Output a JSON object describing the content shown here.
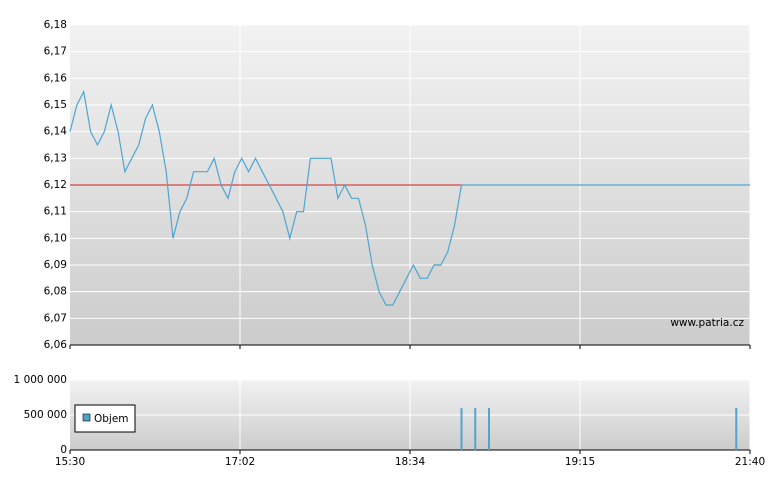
{
  "chart_data": [
    {
      "type": "line",
      "source": "www.patria.cz",
      "color": "#4da6cf",
      "reference_line": 6.12,
      "reference_color": "#d02020",
      "grid": true,
      "values": [
        6.14,
        6.15,
        6.155,
        6.14,
        6.135,
        6.14,
        6.15,
        6.14,
        6.125,
        6.13,
        6.135,
        6.145,
        6.15,
        6.14,
        6.125,
        6.1,
        6.11,
        6.115,
        6.125,
        6.125,
        6.125,
        6.13,
        6.12,
        6.115,
        6.125,
        6.13,
        6.125,
        6.13,
        6.125,
        6.12,
        6.115,
        6.11,
        6.1,
        6.11,
        6.11,
        6.13,
        6.13,
        6.13,
        6.13,
        6.115,
        6.12,
        6.115,
        6.115,
        6.105,
        6.09,
        6.08,
        6.075,
        6.075,
        6.08,
        6.085,
        6.09,
        6.085,
        6.085,
        6.09,
        6.09,
        6.095,
        6.105,
        6.12,
        6.12,
        6.12,
        6.12,
        6.12,
        6.12,
        6.12,
        6.12,
        6.12,
        6.12,
        6.12,
        6.12,
        6.12,
        6.12,
        6.12,
        6.12,
        6.12,
        6.12,
        6.12,
        6.12,
        6.12,
        6.12,
        6.12,
        6.12,
        6.12,
        6.12,
        6.12,
        6.12,
        6.12,
        6.12,
        6.12,
        6.12,
        6.12,
        6.12,
        6.12,
        6.12,
        6.12,
        6.12,
        6.12,
        6.12,
        6.12,
        6.12,
        6.12
      ],
      "ylim": [
        6.06,
        6.18
      ],
      "yticks": [
        {
          "value": 6.06,
          "label": "6,06"
        },
        {
          "value": 6.07,
          "label": "6,07"
        },
        {
          "value": 6.08,
          "label": "6,08"
        },
        {
          "value": 6.09,
          "label": "6,09"
        },
        {
          "value": 6.1,
          "label": "6,10"
        },
        {
          "value": 6.11,
          "label": "6,11"
        },
        {
          "value": 6.12,
          "label": "6,12"
        },
        {
          "value": 6.13,
          "label": "6,13"
        },
        {
          "value": 6.14,
          "label": "6,14"
        },
        {
          "value": 6.15,
          "label": "6,15"
        },
        {
          "value": 6.16,
          "label": "6,16"
        },
        {
          "value": 6.17,
          "label": "6,17"
        },
        {
          "value": 6.18,
          "label": "6,18"
        }
      ]
    },
    {
      "type": "bar",
      "color": "#4da6cf",
      "grid": true,
      "series": [
        {
          "name": "Objem",
          "color": "#4da6cf",
          "values": [
            0,
            0,
            0,
            0,
            0,
            0,
            0,
            0,
            0,
            0,
            0,
            0,
            0,
            0,
            0,
            0,
            0,
            0,
            0,
            0,
            0,
            0,
            0,
            0,
            0,
            0,
            0,
            0,
            0,
            0,
            0,
            0,
            0,
            0,
            0,
            0,
            0,
            0,
            0,
            0,
            0,
            0,
            0,
            0,
            0,
            0,
            0,
            0,
            0,
            0,
            0,
            0,
            0,
            0,
            0,
            0,
            0,
            600000,
            0,
            600000,
            0,
            600000,
            0,
            0,
            0,
            0,
            0,
            0,
            0,
            0,
            0,
            0,
            0,
            0,
            0,
            0,
            0,
            0,
            0,
            0,
            0,
            0,
            0,
            0,
            0,
            0,
            0,
            0,
            0,
            0,
            0,
            0,
            0,
            0,
            0,
            0,
            0,
            600000,
            0,
            0
          ]
        }
      ],
      "ylim": [
        0,
        1000000
      ],
      "yticks": [
        0,
        {
          "value": 500000,
          "label": "500 000"
        },
        {
          "value": 1000000,
          "label": "1 000 000"
        }
      ],
      "xticks": [
        "15:30",
        "17:02",
        "18:34",
        "19:15",
        "21:40"
      ]
    }
  ]
}
